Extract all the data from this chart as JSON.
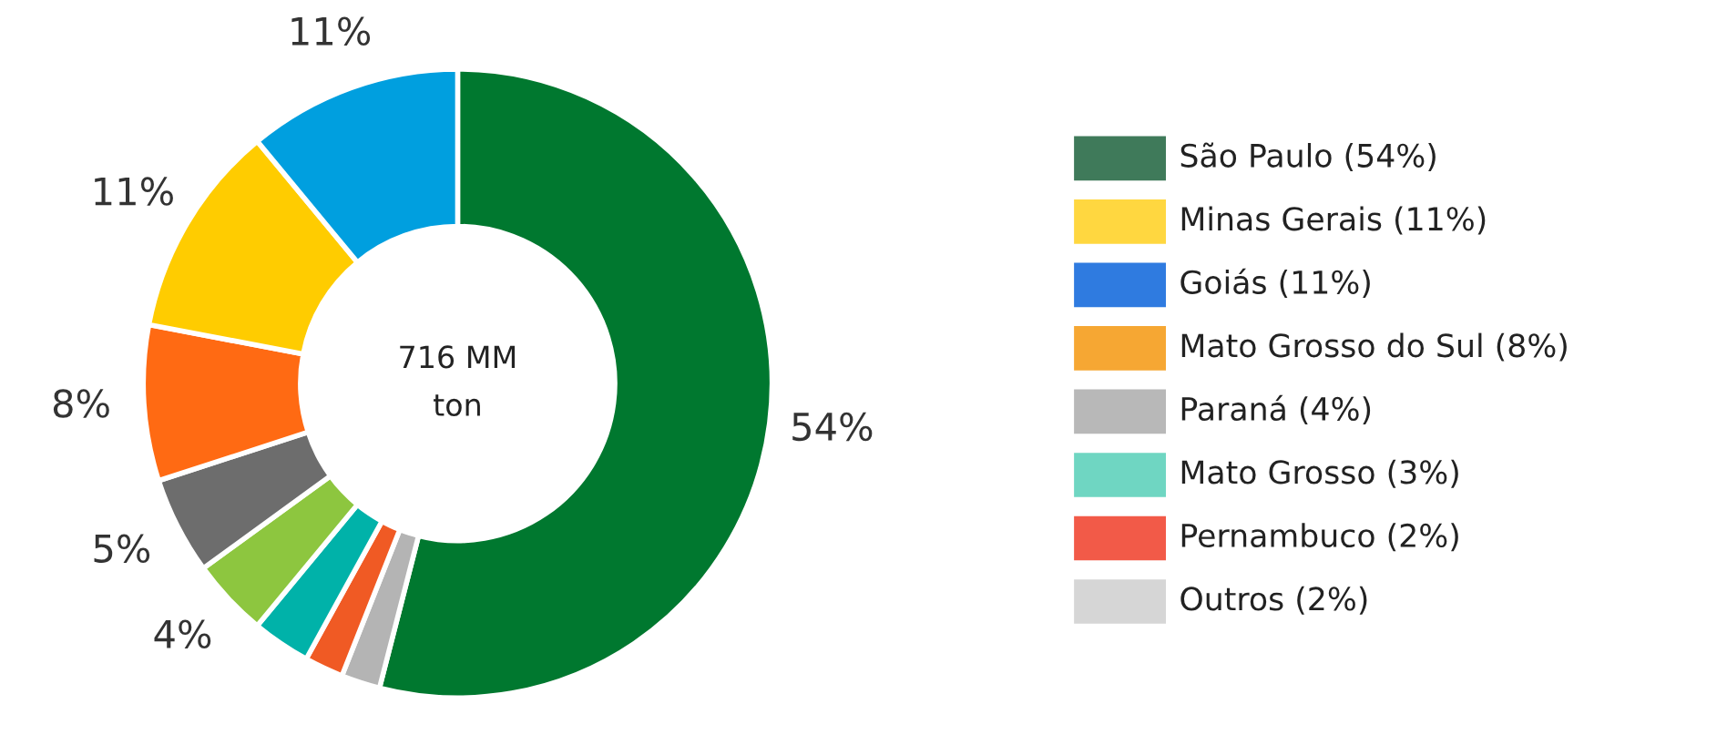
{
  "chart_data": [
    {
      "type": "donut",
      "categories": [
        null,
        null,
        null,
        null,
        null,
        null,
        null,
        null,
        null
      ],
      "values": [
        54,
        2,
        2,
        3,
        4,
        5,
        8,
        11,
        11
      ],
      "colors": [
        "#00782f",
        "#b4b4b4",
        "#f05a24",
        "#00b2a9",
        "#8dc63f",
        "#6d6d6d",
        "#ff6a13",
        "#ffcc00",
        "#009fdf"
      ],
      "value_labels": [
        "54%",
        null,
        null,
        null,
        "4%",
        "5%",
        "8%",
        "11%",
        "11%"
      ],
      "annotations": [
        "716 MM\nton"
      ]
    },
    {
      "type": "other",
      "categories": [
        "São Paulo (54%)",
        "Minas Gerais (11%)",
        "Goiás (11%)",
        "Mato Grosso do Sul (8%)",
        "Paraná (4%)",
        "Mato Grosso (3%)",
        "Pernambuco (2%)",
        "Outros (2%)"
      ],
      "colors": [
        "#3f7a5a",
        "#ffd740",
        "#2f7be0",
        "#f6a733",
        "#b8b8b8",
        "#6fd6c2",
        "#f25a48",
        "#d6d6d6"
      ]
    }
  ]
}
